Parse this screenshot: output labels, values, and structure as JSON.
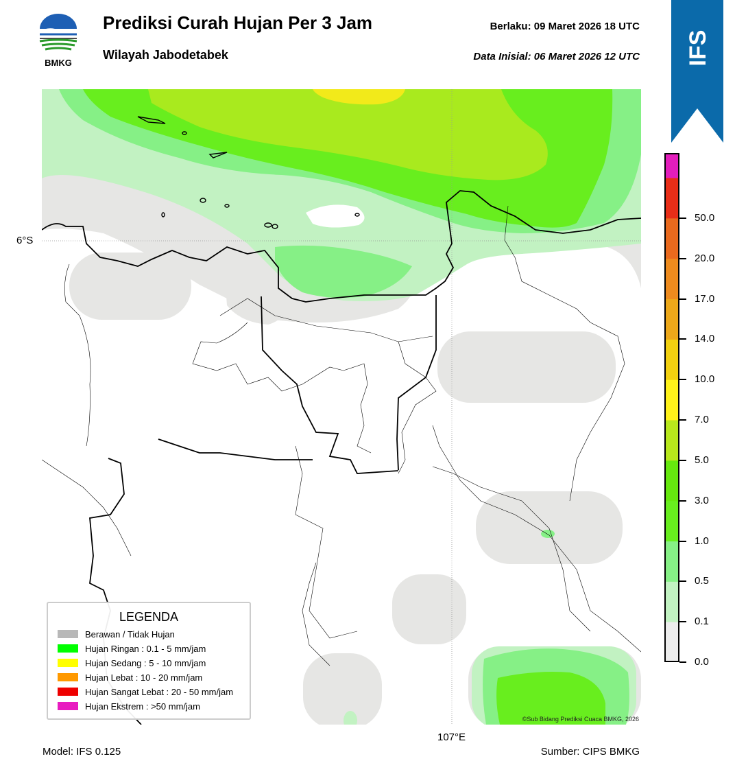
{
  "header": {
    "title": "Prediksi Curah Hujan Per 3 Jam",
    "subtitle": "Wilayah Jabodetabek",
    "valid": "Berlaku:  09 Maret 2026 18 UTC",
    "initial": "Data Inisial:  06 Maret 2026 12 UTC",
    "logo_text": "BMKG",
    "badge": "IFS"
  },
  "map": {
    "lat_label": "6°S",
    "lon_label": "107°E",
    "copyright": "©Sub Bidang Prediksi Cuaca BMKG, 2026"
  },
  "legend": {
    "title": "LEGENDA",
    "items": [
      {
        "label": "Berawan / Tidak Hujan",
        "color": "#b8b8b8"
      },
      {
        "label": "Hujan Ringan : 0.1 - 5 mm/jam",
        "color": "#00ff00"
      },
      {
        "label": "Hujan Sedang : 5 - 10 mm/jam",
        "color": "#ffff00"
      },
      {
        "label": "Hujan Lebat : 10 - 20 mm/jam",
        "color": "#ff9900"
      },
      {
        "label": "Hujan Sangat Lebat : 20 - 50 mm/jam",
        "color": "#ee0000"
      },
      {
        "label": "Hujan Ekstrem : >50 mm/jam",
        "color": "#e81cc0"
      }
    ]
  },
  "colorbar": {
    "ticks": [
      "0.0",
      "0.1",
      "0.5",
      "1.0",
      "3.0",
      "5.0",
      "7.0",
      "10.0",
      "14.0",
      "17.0",
      "20.0",
      "50.0"
    ],
    "colors": [
      "#ececec",
      "#c2f2c2",
      "#86f086",
      "#68ee1e",
      "#66e80e",
      "#b8e81c",
      "#fff21a",
      "#f2d010",
      "#eda81a",
      "#ee8b1e",
      "#ea6a1e",
      "#e82e18",
      "#e31ebc"
    ]
  },
  "footer": {
    "model": "Model: IFS 0.125",
    "source": "Sumber: CIPS BMKG"
  }
}
